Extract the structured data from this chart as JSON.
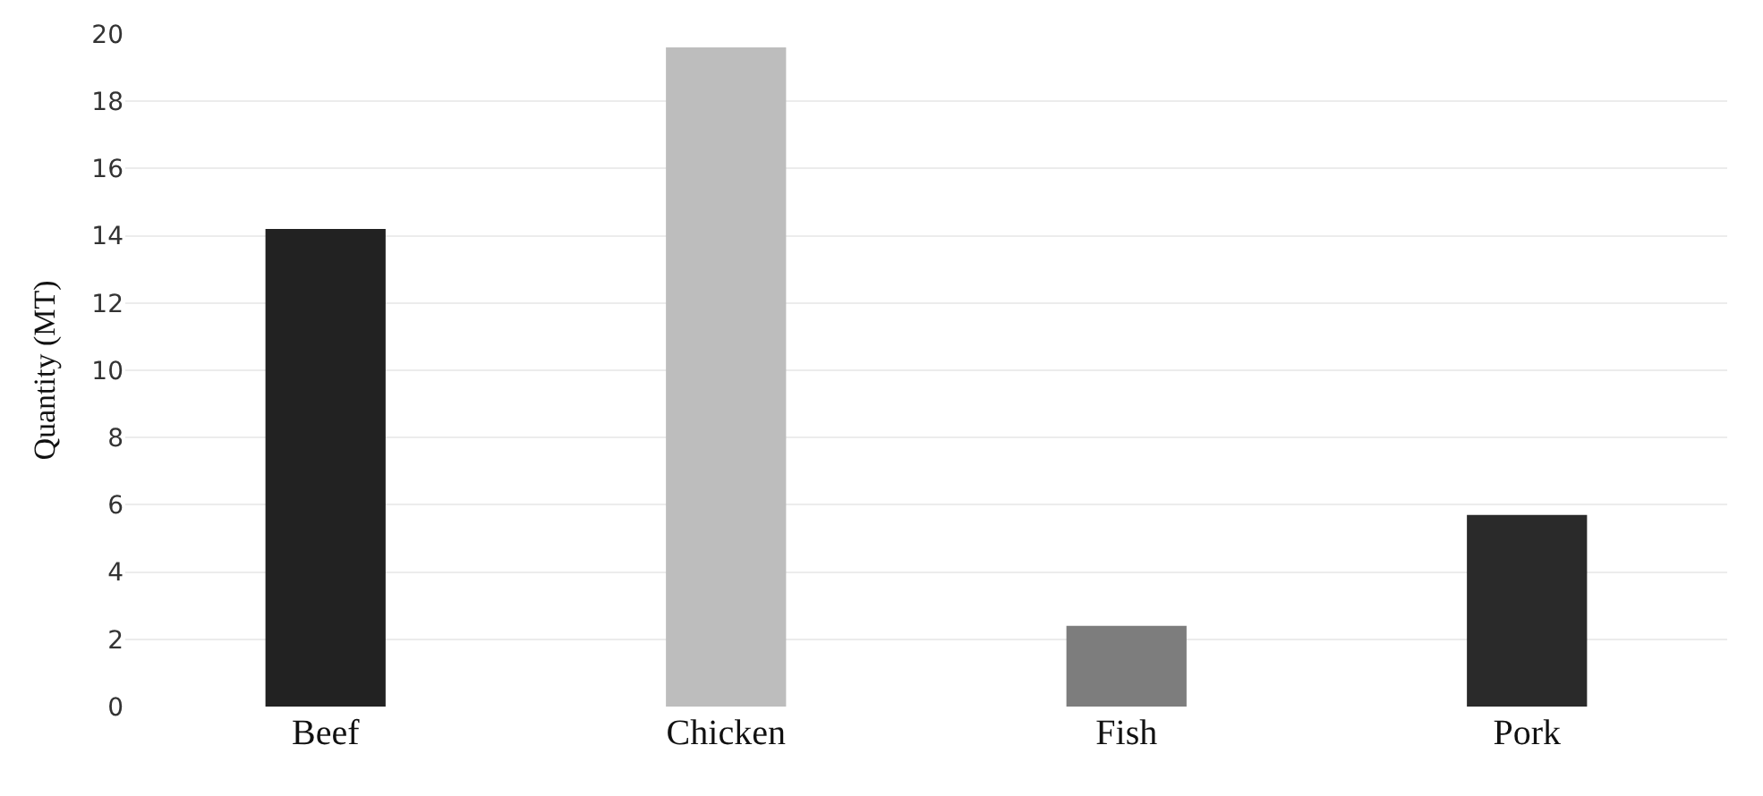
{
  "chart_data": {
    "type": "bar",
    "ylabel": "Quantity (MT)",
    "categories": [
      "Beef",
      "Chicken",
      "Fish",
      "Pork"
    ],
    "values": [
      14.2,
      19.6,
      2.4,
      5.7
    ],
    "colors": [
      "#222222",
      "#bdbdbd",
      "#7d7d7d",
      "#2a2a2a"
    ],
    "ylim": [
      0,
      20
    ],
    "yticks": [
      0,
      2,
      4,
      6,
      8,
      10,
      12,
      14,
      16,
      18,
      20
    ],
    "grid": "y"
  }
}
